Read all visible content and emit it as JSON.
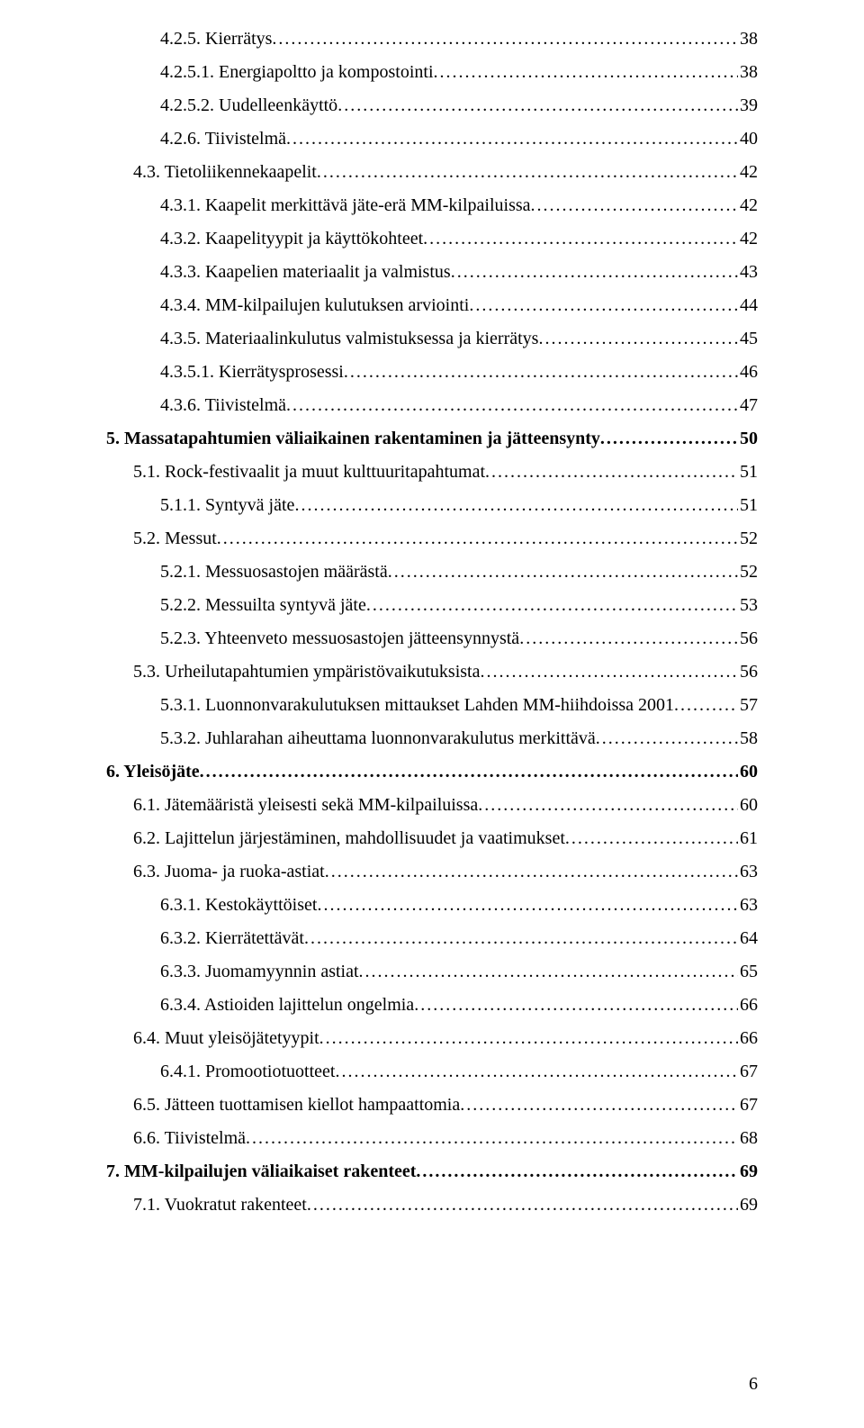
{
  "page_number": "6",
  "entries": [
    {
      "level": 3,
      "bold": false,
      "label": "4.2.5. Kierrätys",
      "page": "38"
    },
    {
      "level": 3,
      "bold": false,
      "label": "4.2.5.1. Energiapoltto ja kompostointi",
      "page": "38"
    },
    {
      "level": 3,
      "bold": false,
      "label": "4.2.5.2. Uudelleenkäyttö",
      "page": "39"
    },
    {
      "level": 3,
      "bold": false,
      "label": "4.2.6. Tiivistelmä",
      "page": "40"
    },
    {
      "level": 2,
      "bold": false,
      "label": "4.3. Tietoliikennekaapelit",
      "page": "42"
    },
    {
      "level": 3,
      "bold": false,
      "label": "4.3.1. Kaapelit merkittävä jäte-erä MM-kilpailuissa",
      "page": "42"
    },
    {
      "level": 3,
      "bold": false,
      "label": "4.3.2. Kaapelityypit ja käyttökohteet",
      "page": "42"
    },
    {
      "level": 3,
      "bold": false,
      "label": "4.3.3. Kaapelien materiaalit ja valmistus",
      "page": "43"
    },
    {
      "level": 3,
      "bold": false,
      "label": "4.3.4. MM-kilpailujen kulutuksen arviointi",
      "page": "44"
    },
    {
      "level": 3,
      "bold": false,
      "label": "4.3.5. Materiaalinkulutus valmistuksessa ja kierrätys",
      "page": "45"
    },
    {
      "level": 3,
      "bold": false,
      "label": "4.3.5.1. Kierrätysprosessi",
      "page": "46"
    },
    {
      "level": 3,
      "bold": false,
      "label": "4.3.6. Tiivistelmä",
      "page": "47"
    },
    {
      "level": 1,
      "bold": true,
      "label": "5. Massatapahtumien väliaikainen rakentaminen ja jätteensynty",
      "page": "50"
    },
    {
      "level": 2,
      "bold": false,
      "label": "5.1. Rock-festivaalit ja muut kulttuuritapahtumat",
      "page": "51"
    },
    {
      "level": 3,
      "bold": false,
      "label": "5.1.1. Syntyvä jäte",
      "page": "51"
    },
    {
      "level": 2,
      "bold": false,
      "label": "5.2. Messut",
      "page": "52"
    },
    {
      "level": 3,
      "bold": false,
      "label": "5.2.1. Messuosastojen määrästä",
      "page": "52"
    },
    {
      "level": 3,
      "bold": false,
      "label": "5.2.2. Messuilta syntyvä jäte",
      "page": "53"
    },
    {
      "level": 3,
      "bold": false,
      "label": "5.2.3. Yhteenveto messuosastojen jätteensynnystä",
      "page": "56"
    },
    {
      "level": 2,
      "bold": false,
      "label": "5.3. Urheilutapahtumien ympäristövaikutuksista",
      "page": "56"
    },
    {
      "level": 3,
      "bold": false,
      "label": "5.3.1. Luonnonvarakulutuksen mittaukset Lahden MM-hiihdoissa 2001",
      "page": "57"
    },
    {
      "level": 3,
      "bold": false,
      "label": "5.3.2. Juhlarahan aiheuttama luonnonvarakulutus merkittävä",
      "page": "58"
    },
    {
      "level": 1,
      "bold": true,
      "label": "6. Yleisöjäte",
      "page": "60"
    },
    {
      "level": 2,
      "bold": false,
      "label": "6.1. Jätemääristä yleisesti sekä MM-kilpailuissa",
      "page": "60"
    },
    {
      "level": 2,
      "bold": false,
      "label": "6.2. Lajittelun järjestäminen, mahdollisuudet ja vaatimukset",
      "page": "61"
    },
    {
      "level": 2,
      "bold": false,
      "label": "6.3. Juoma- ja ruoka-astiat",
      "page": "63"
    },
    {
      "level": 3,
      "bold": false,
      "label": "6.3.1. Kestokäyttöiset",
      "page": "63"
    },
    {
      "level": 3,
      "bold": false,
      "label": "6.3.2. Kierrätettävät",
      "page": "64"
    },
    {
      "level": 3,
      "bold": false,
      "label": "6.3.3. Juomamyynnin astiat",
      "page": "65"
    },
    {
      "level": 3,
      "bold": false,
      "label": "6.3.4.  Astioiden lajittelun ongelmia",
      "page": "66"
    },
    {
      "level": 2,
      "bold": false,
      "label": "6.4. Muut yleisöjätetyypit",
      "page": "66"
    },
    {
      "level": 3,
      "bold": false,
      "label": "6.4.1. Promootiotuotteet",
      "page": "67"
    },
    {
      "level": 2,
      "bold": false,
      "label": "6.5. Jätteen tuottamisen kiellot hampaattomia",
      "page": "67"
    },
    {
      "level": 2,
      "bold": false,
      "label": "6.6. Tiivistelmä",
      "page": "68"
    },
    {
      "level": 1,
      "bold": true,
      "label": "7. MM-kilpailujen väliaikaiset rakenteet",
      "page": "69"
    },
    {
      "level": 2,
      "bold": false,
      "label": "7.1. Vuokratut rakenteet",
      "page": "69"
    }
  ]
}
